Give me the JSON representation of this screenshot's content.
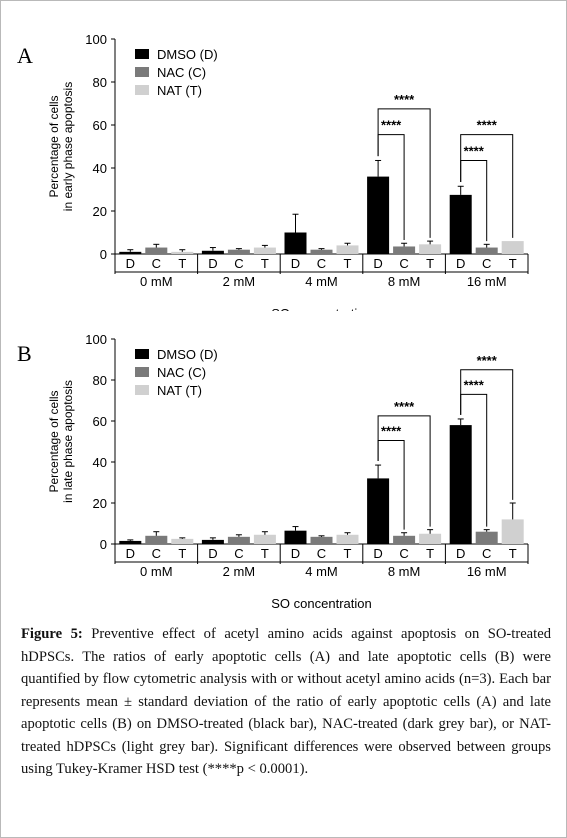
{
  "legend": {
    "dmso": "DMSO (D)",
    "nac": "NAC (C)",
    "nat": "NAT (T)"
  },
  "colors": {
    "dmso": "#000000",
    "nac": "#7a7a7a",
    "nat": "#d0d0d0"
  },
  "chart_data": [
    {
      "panel": "A",
      "type": "bar",
      "xlabel": "SO concentration",
      "ylabel_line1": "Percentage of cells",
      "ylabel_line2": "in early phase apoptosis",
      "ylim": [
        0,
        100
      ],
      "yticks": [
        0,
        20,
        40,
        60,
        80,
        100
      ],
      "groups": [
        "0 mM",
        "2 mM",
        "4 mM",
        "8 mM",
        "16 mM"
      ],
      "sub_labels": [
        "D",
        "C",
        "T"
      ],
      "series": [
        {
          "name": "DMSO (D)",
          "values": [
            1.0,
            1.5,
            10.0,
            36.0,
            27.5
          ],
          "errors": [
            1.0,
            1.5,
            8.5,
            7.5,
            4.0
          ]
        },
        {
          "name": "NAC (C)",
          "values": [
            3.0,
            2.0,
            2.0,
            3.5,
            3.0
          ],
          "errors": [
            1.5,
            0.5,
            0.5,
            1.5,
            1.5
          ]
        },
        {
          "name": "NAT (T)",
          "values": [
            1.0,
            3.0,
            4.0,
            4.5,
            6.0
          ],
          "errors": [
            1.0,
            1.0,
            1.0,
            1.5,
            0.0
          ]
        }
      ],
      "significance": [
        {
          "group": 3,
          "from": 0,
          "to": 1,
          "label": "****"
        },
        {
          "group": 3,
          "from": 0,
          "to": 2,
          "label": "****"
        },
        {
          "group": 4,
          "from": 0,
          "to": 1,
          "label": "****"
        },
        {
          "group": 4,
          "from": 0,
          "to": 2,
          "label": "****"
        }
      ]
    },
    {
      "panel": "B",
      "type": "bar",
      "xlabel": "SO concentration",
      "ylabel_line1": "Percentage of cells",
      "ylabel_line2": "in late phase apoptosis",
      "ylim": [
        0,
        100
      ],
      "yticks": [
        0,
        20,
        40,
        60,
        80,
        100
      ],
      "groups": [
        "0 mM",
        "2 mM",
        "4 mM",
        "8 mM",
        "16 mM"
      ],
      "sub_labels": [
        "D",
        "C",
        "T"
      ],
      "series": [
        {
          "name": "DMSO (D)",
          "values": [
            1.5,
            2.0,
            6.5,
            32.0,
            58.0
          ],
          "errors": [
            0.5,
            1.0,
            2.0,
            6.5,
            3.0
          ]
        },
        {
          "name": "NAC (C)",
          "values": [
            4.0,
            3.5,
            3.5,
            4.0,
            6.0
          ],
          "errors": [
            2.0,
            1.0,
            0.5,
            1.5,
            1.0
          ]
        },
        {
          "name": "NAT (T)",
          "values": [
            2.5,
            4.5,
            4.5,
            5.0,
            12.0
          ],
          "errors": [
            0.5,
            1.5,
            1.0,
            2.0,
            8.0
          ]
        }
      ],
      "significance": [
        {
          "group": 3,
          "from": 0,
          "to": 1,
          "label": "****"
        },
        {
          "group": 3,
          "from": 0,
          "to": 2,
          "label": "****"
        },
        {
          "group": 4,
          "from": 0,
          "to": 1,
          "label": "****"
        },
        {
          "group": 4,
          "from": 0,
          "to": 2,
          "label": "****"
        }
      ]
    }
  ],
  "caption": {
    "lead": "Figure 5:",
    "text": " Preventive effect of acetyl amino acids against apoptosis on SO-treated hDPSCs. The ratios of early apoptotic cells (A) and late apoptotic cells (B) were quantified by flow cytometric analysis with or without acetyl amino acids (n=3). Each bar represents mean ± standard deviation of the ratio of early apoptotic cells (A) and late apoptotic cells (B) on DMSO-treated (black bar), NAC-treated (dark grey bar), or NAT-treated hDPSCs (light grey bar). Significant differences were observed between groups using Tukey-Kramer HSD test (****p < 0.0001)."
  }
}
